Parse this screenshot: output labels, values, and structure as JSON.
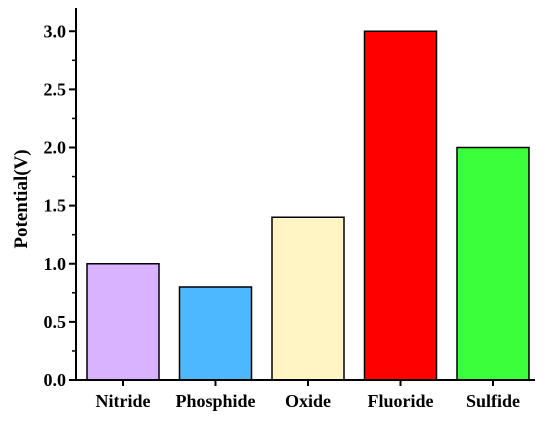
{
  "chart_data": {
    "type": "bar",
    "title": "",
    "xlabel": "",
    "ylabel": "Potential(V)",
    "categories": [
      "Nitride",
      "Phosphide",
      "Oxide",
      "Fluoride",
      "Sulfide"
    ],
    "values": [
      1.0,
      0.8,
      1.4,
      3.0,
      2.0
    ],
    "colors": [
      "#D9B3FF",
      "#4DB8FF",
      "#FFF5C4",
      "#FF0000",
      "#3BFF3B"
    ],
    "ylim": [
      0,
      3.2
    ],
    "yticks": [
      "0.0",
      "0.5",
      "1.0",
      "1.5",
      "2.0",
      "2.5",
      "3.0"
    ],
    "grid": false,
    "legend": "none"
  }
}
